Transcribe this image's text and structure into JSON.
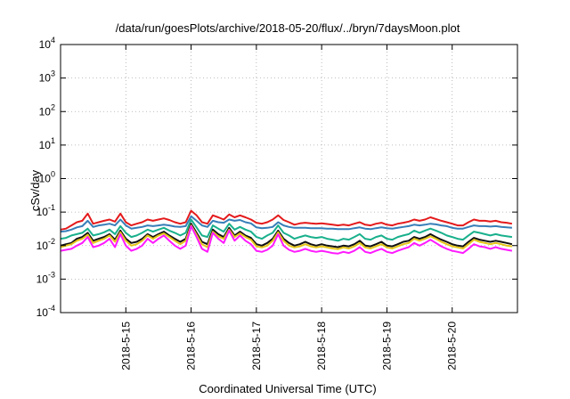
{
  "chart_data": {
    "type": "line",
    "title": "/data/run/goesPlots/archive/2018-05-20/flux/../bryn/7daysMoon.plot",
    "xlabel": "Coordinated Universal Time (UTC)",
    "ylabel": "cSv/day",
    "yscale": "log",
    "ylim": [
      0.0001,
      10000
    ],
    "xlim": [
      "2018-05-14 00:00",
      "2018-05-21 00:00"
    ],
    "y_ticks": [
      {
        "value": 0.0001,
        "base": "10",
        "exp": "-4"
      },
      {
        "value": 0.001,
        "base": "10",
        "exp": "-3"
      },
      {
        "value": 0.01,
        "base": "10",
        "exp": "-2"
      },
      {
        "value": 0.1,
        "base": "10",
        "exp": "-1"
      },
      {
        "value": 1,
        "base": "10",
        "exp": "0"
      },
      {
        "value": 10,
        "base": "10",
        "exp": "1"
      },
      {
        "value": 100,
        "base": "10",
        "exp": "2"
      },
      {
        "value": 1000,
        "base": "10",
        "exp": "3"
      },
      {
        "value": 10000,
        "base": "10",
        "exp": "4"
      }
    ],
    "x_ticks": [
      {
        "label": "2018-5-15",
        "time": "2018-05-15 00:00"
      },
      {
        "label": "2018-5-16",
        "time": "2018-05-16 00:00"
      },
      {
        "label": "2018-5-17",
        "time": "2018-05-17 00:00"
      },
      {
        "label": "2018-5-18",
        "time": "2018-05-18 00:00"
      },
      {
        "label": "2018-5-19",
        "time": "2018-05-19 00:00"
      },
      {
        "label": "2018-5-20",
        "time": "2018-05-20 00:00"
      }
    ],
    "grid": true,
    "legend": "none",
    "x": [
      "2018-05-14 00:00",
      "2018-05-14 02:00",
      "2018-05-14 04:00",
      "2018-05-14 06:00",
      "2018-05-14 08:00",
      "2018-05-14 10:00",
      "2018-05-14 12:00",
      "2018-05-14 14:00",
      "2018-05-14 16:00",
      "2018-05-14 18:00",
      "2018-05-14 20:00",
      "2018-05-14 22:00",
      "2018-05-15 00:00",
      "2018-05-15 02:00",
      "2018-05-15 04:00",
      "2018-05-15 06:00",
      "2018-05-15 08:00",
      "2018-05-15 10:00",
      "2018-05-15 12:00",
      "2018-05-15 14:00",
      "2018-05-15 16:00",
      "2018-05-15 18:00",
      "2018-05-15 20:00",
      "2018-05-15 22:00",
      "2018-05-16 00:00",
      "2018-05-16 02:00",
      "2018-05-16 04:00",
      "2018-05-16 06:00",
      "2018-05-16 08:00",
      "2018-05-16 10:00",
      "2018-05-16 12:00",
      "2018-05-16 14:00",
      "2018-05-16 16:00",
      "2018-05-16 18:00",
      "2018-05-16 20:00",
      "2018-05-16 22:00",
      "2018-05-17 00:00",
      "2018-05-17 02:00",
      "2018-05-17 04:00",
      "2018-05-17 06:00",
      "2018-05-17 08:00",
      "2018-05-17 10:00",
      "2018-05-17 12:00",
      "2018-05-17 14:00",
      "2018-05-17 16:00",
      "2018-05-17 18:00",
      "2018-05-17 20:00",
      "2018-05-17 22:00",
      "2018-05-18 00:00",
      "2018-05-18 02:00",
      "2018-05-18 04:00",
      "2018-05-18 06:00",
      "2018-05-18 08:00",
      "2018-05-18 10:00",
      "2018-05-18 12:00",
      "2018-05-18 14:00",
      "2018-05-18 16:00",
      "2018-05-18 18:00",
      "2018-05-18 20:00",
      "2018-05-18 22:00",
      "2018-05-19 00:00",
      "2018-05-19 02:00",
      "2018-05-19 04:00",
      "2018-05-19 06:00",
      "2018-05-19 08:00",
      "2018-05-19 10:00",
      "2018-05-19 12:00",
      "2018-05-19 14:00",
      "2018-05-19 16:00",
      "2018-05-19 18:00",
      "2018-05-19 20:00",
      "2018-05-19 22:00",
      "2018-05-20 00:00",
      "2018-05-20 02:00",
      "2018-05-20 04:00",
      "2018-05-20 06:00",
      "2018-05-20 08:00",
      "2018-05-20 10:00",
      "2018-05-20 12:00",
      "2018-05-20 14:00",
      "2018-05-20 16:00",
      "2018-05-20 18:00",
      "2018-05-20 20:00",
      "2018-05-20 22:00"
    ],
    "series": [
      {
        "color": "#e41a1c",
        "values": [
          0.03,
          0.032,
          0.04,
          0.05,
          0.055,
          0.09,
          0.045,
          0.05,
          0.055,
          0.06,
          0.052,
          0.09,
          0.05,
          0.04,
          0.045,
          0.05,
          0.06,
          0.055,
          0.06,
          0.065,
          0.058,
          0.05,
          0.045,
          0.05,
          0.11,
          0.08,
          0.05,
          0.045,
          0.08,
          0.07,
          0.06,
          0.085,
          0.07,
          0.08,
          0.07,
          0.06,
          0.048,
          0.045,
          0.05,
          0.06,
          0.08,
          0.058,
          0.05,
          0.042,
          0.046,
          0.048,
          0.046,
          0.045,
          0.046,
          0.044,
          0.042,
          0.04,
          0.042,
          0.04,
          0.045,
          0.05,
          0.042,
          0.04,
          0.045,
          0.048,
          0.042,
          0.04,
          0.045,
          0.048,
          0.052,
          0.06,
          0.055,
          0.06,
          0.07,
          0.062,
          0.055,
          0.05,
          0.045,
          0.04,
          0.04,
          0.05,
          0.06,
          0.055,
          0.055,
          0.052,
          0.055,
          0.05,
          0.048,
          0.045
        ]
      },
      {
        "color": "#377eb8",
        "values": [
          0.026,
          0.027,
          0.03,
          0.035,
          0.038,
          0.055,
          0.036,
          0.04,
          0.042,
          0.045,
          0.04,
          0.06,
          0.04,
          0.032,
          0.034,
          0.036,
          0.04,
          0.038,
          0.04,
          0.042,
          0.04,
          0.037,
          0.036,
          0.038,
          0.075,
          0.055,
          0.04,
          0.036,
          0.055,
          0.05,
          0.048,
          0.06,
          0.055,
          0.058,
          0.05,
          0.046,
          0.035,
          0.033,
          0.034,
          0.036,
          0.05,
          0.04,
          0.036,
          0.034,
          0.034,
          0.034,
          0.033,
          0.033,
          0.033,
          0.032,
          0.032,
          0.031,
          0.031,
          0.031,
          0.033,
          0.035,
          0.032,
          0.031,
          0.033,
          0.035,
          0.033,
          0.032,
          0.034,
          0.036,
          0.038,
          0.042,
          0.04,
          0.042,
          0.045,
          0.043,
          0.04,
          0.038,
          0.034,
          0.032,
          0.032,
          0.036,
          0.04,
          0.038,
          0.038,
          0.037,
          0.038,
          0.036,
          0.035,
          0.034
        ]
      },
      {
        "color": "#19b08c",
        "values": [
          0.016,
          0.017,
          0.02,
          0.022,
          0.024,
          0.032,
          0.02,
          0.022,
          0.025,
          0.03,
          0.022,
          0.038,
          0.024,
          0.018,
          0.02,
          0.024,
          0.03,
          0.026,
          0.03,
          0.034,
          0.028,
          0.024,
          0.02,
          0.024,
          0.06,
          0.035,
          0.02,
          0.018,
          0.04,
          0.032,
          0.026,
          0.045,
          0.03,
          0.036,
          0.03,
          0.026,
          0.018,
          0.016,
          0.02,
          0.024,
          0.04,
          0.024,
          0.02,
          0.016,
          0.018,
          0.02,
          0.018,
          0.017,
          0.018,
          0.016,
          0.015,
          0.014,
          0.016,
          0.015,
          0.018,
          0.022,
          0.016,
          0.015,
          0.018,
          0.02,
          0.016,
          0.015,
          0.018,
          0.02,
          0.022,
          0.028,
          0.024,
          0.028,
          0.032,
          0.028,
          0.024,
          0.02,
          0.018,
          0.016,
          0.015,
          0.02,
          0.026,
          0.024,
          0.022,
          0.02,
          0.022,
          0.02,
          0.019,
          0.018
        ]
      },
      {
        "color": "#111111",
        "values": [
          0.01,
          0.011,
          0.012,
          0.016,
          0.018,
          0.024,
          0.014,
          0.016,
          0.018,
          0.022,
          0.015,
          0.028,
          0.016,
          0.012,
          0.013,
          0.016,
          0.022,
          0.018,
          0.022,
          0.026,
          0.02,
          0.016,
          0.013,
          0.016,
          0.045,
          0.024,
          0.013,
          0.011,
          0.03,
          0.022,
          0.018,
          0.034,
          0.02,
          0.026,
          0.02,
          0.017,
          0.011,
          0.01,
          0.012,
          0.016,
          0.028,
          0.016,
          0.012,
          0.01,
          0.011,
          0.013,
          0.011,
          0.01,
          0.011,
          0.01,
          0.0095,
          0.009,
          0.01,
          0.0095,
          0.011,
          0.014,
          0.01,
          0.0095,
          0.011,
          0.013,
          0.01,
          0.0095,
          0.011,
          0.013,
          0.014,
          0.018,
          0.016,
          0.018,
          0.022,
          0.018,
          0.015,
          0.013,
          0.011,
          0.01,
          0.0095,
          0.013,
          0.017,
          0.015,
          0.014,
          0.013,
          0.014,
          0.013,
          0.012,
          0.011
        ]
      },
      {
        "color": "#e6c619",
        "values": [
          0.009,
          0.01,
          0.011,
          0.014,
          0.016,
          0.021,
          0.012,
          0.014,
          0.016,
          0.02,
          0.013,
          0.025,
          0.014,
          0.01,
          0.011,
          0.014,
          0.02,
          0.016,
          0.02,
          0.023,
          0.018,
          0.014,
          0.011,
          0.014,
          0.04,
          0.021,
          0.011,
          0.009,
          0.026,
          0.019,
          0.016,
          0.03,
          0.018,
          0.023,
          0.018,
          0.015,
          0.0095,
          0.0088,
          0.01,
          0.014,
          0.025,
          0.014,
          0.01,
          0.0088,
          0.0095,
          0.011,
          0.0095,
          0.0088,
          0.0095,
          0.0088,
          0.0082,
          0.0078,
          0.0088,
          0.0082,
          0.0095,
          0.012,
          0.0088,
          0.0082,
          0.0095,
          0.011,
          0.0088,
          0.0082,
          0.0095,
          0.011,
          0.012,
          0.016,
          0.014,
          0.016,
          0.019,
          0.016,
          0.013,
          0.011,
          0.0095,
          0.0088,
          0.0082,
          0.011,
          0.015,
          0.013,
          0.012,
          0.011,
          0.012,
          0.011,
          0.01,
          0.0095
        ]
      },
      {
        "color": "#ff1aff",
        "values": [
          0.007,
          0.0075,
          0.008,
          0.01,
          0.012,
          0.018,
          0.009,
          0.01,
          0.012,
          0.016,
          0.009,
          0.022,
          0.01,
          0.007,
          0.008,
          0.01,
          0.016,
          0.012,
          0.016,
          0.02,
          0.014,
          0.01,
          0.008,
          0.01,
          0.038,
          0.018,
          0.008,
          0.0065,
          0.024,
          0.016,
          0.012,
          0.028,
          0.014,
          0.02,
          0.014,
          0.011,
          0.007,
          0.0065,
          0.0075,
          0.01,
          0.022,
          0.01,
          0.0075,
          0.0065,
          0.007,
          0.008,
          0.007,
          0.0065,
          0.007,
          0.0065,
          0.006,
          0.0058,
          0.0065,
          0.006,
          0.007,
          0.009,
          0.0065,
          0.006,
          0.007,
          0.008,
          0.0065,
          0.006,
          0.007,
          0.008,
          0.009,
          0.012,
          0.01,
          0.012,
          0.015,
          0.012,
          0.0095,
          0.008,
          0.007,
          0.0065,
          0.006,
          0.008,
          0.011,
          0.0095,
          0.009,
          0.008,
          0.009,
          0.008,
          0.0075,
          0.007
        ]
      }
    ]
  }
}
